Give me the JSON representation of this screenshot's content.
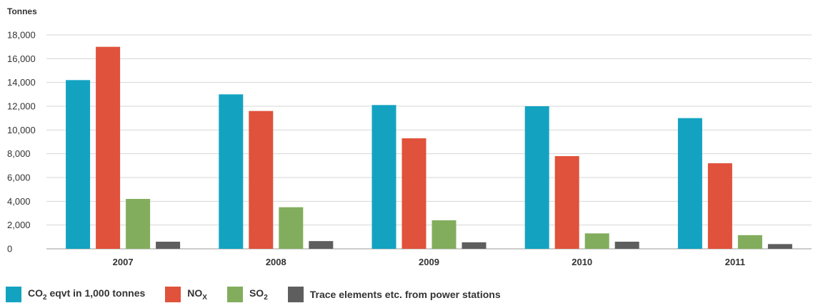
{
  "chart_data": {
    "type": "bar",
    "y_unit_label": "Tonnes",
    "categories": [
      "2007",
      "2008",
      "2009",
      "2010",
      "2011"
    ],
    "ylim": [
      0,
      18000
    ],
    "yticks": [
      0,
      2000,
      4000,
      6000,
      8000,
      10000,
      12000,
      14000,
      16000,
      18000
    ],
    "ytick_labels": [
      "0",
      "2,000",
      "4,000",
      "6,000",
      "8,000",
      "10,000",
      "12,000",
      "14,000",
      "16,000",
      "18,000"
    ],
    "grid": true,
    "legend_position": "bottom",
    "series": [
      {
        "name": "CO2 eqvt in 1,000 tonnes",
        "color": "#13a3c1",
        "values": [
          14200,
          13000,
          12100,
          12000,
          11000
        ]
      },
      {
        "name": "NOX",
        "color": "#e0523b",
        "values": [
          17000,
          11600,
          9300,
          7800,
          7200
        ]
      },
      {
        "name": "SO2",
        "color": "#82ad5d",
        "values": [
          4200,
          3500,
          2400,
          1300,
          1150
        ]
      },
      {
        "name": "Trace elements etc. from power stations",
        "color": "#5e5e5e",
        "values": [
          600,
          650,
          550,
          600,
          400
        ]
      }
    ]
  },
  "legend": {
    "items": [
      {
        "base": "CO",
        "sub": "2",
        "rest": " eqvt in 1,000 tonnes"
      },
      {
        "base": "NO",
        "sub": "X",
        "rest": ""
      },
      {
        "base": "SO",
        "sub": "2",
        "rest": ""
      },
      {
        "base": "Trace elements etc. from power stations",
        "sub": "",
        "rest": ""
      }
    ]
  }
}
